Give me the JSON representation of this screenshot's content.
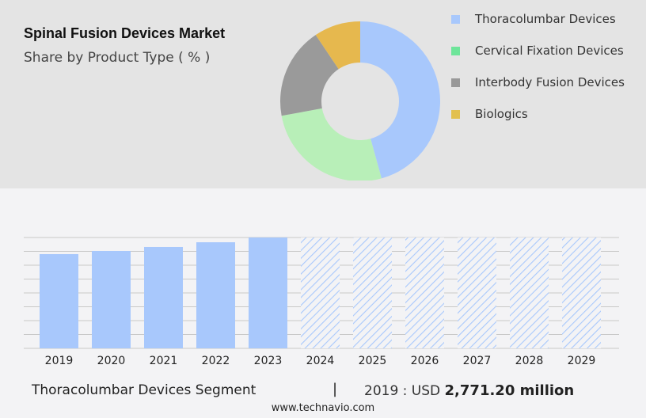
{
  "header": {
    "title": "Spinal Fusion Devices Market",
    "subtitle": "Share by Product Type ( % )"
  },
  "chart_data": [
    {
      "type": "pie",
      "title": "Spinal Fusion Devices Market",
      "subtitle": "Share by Product Type ( % )",
      "donut": true,
      "legend_position": "right",
      "slices": [
        {
          "name": "Thoracolumbar Devices",
          "value": 45.7,
          "color": "#a8c8fc",
          "legend_color": "#a8c8fc"
        },
        {
          "name": "Cervical Fixation Devices",
          "value": 26.4,
          "color": "#b8efb8",
          "legend_color": "#6ee59a"
        },
        {
          "name": "Interbody Fusion Devices",
          "value": 18.5,
          "color": "#9a9a9a",
          "legend_color": "#999999"
        },
        {
          "name": "Biologics",
          "value": 9.4,
          "color": "#e6b84e",
          "legend_color": "#e2c04e"
        }
      ]
    },
    {
      "type": "bar",
      "categories": [
        "2019",
        "2020",
        "2021",
        "2022",
        "2023",
        "2024",
        "2025",
        "2026",
        "2027",
        "2028",
        "2029"
      ],
      "values": [
        2771.2,
        2864,
        2981,
        3120,
        3260,
        null,
        null,
        null,
        null,
        null,
        null
      ],
      "forecast": [
        false,
        false,
        false,
        false,
        false,
        true,
        true,
        true,
        true,
        true,
        true
      ],
      "ylim": [
        0,
        3260
      ],
      "grid": true,
      "bar_color": "#a8c8fc",
      "y_axis_labels": false
    }
  ],
  "footer": {
    "segment": "Thoracolumbar Devices Segment",
    "separator": "|",
    "year_label": "2019 : USD",
    "value": "2,771.20 million",
    "website": "www.technavio.com"
  }
}
